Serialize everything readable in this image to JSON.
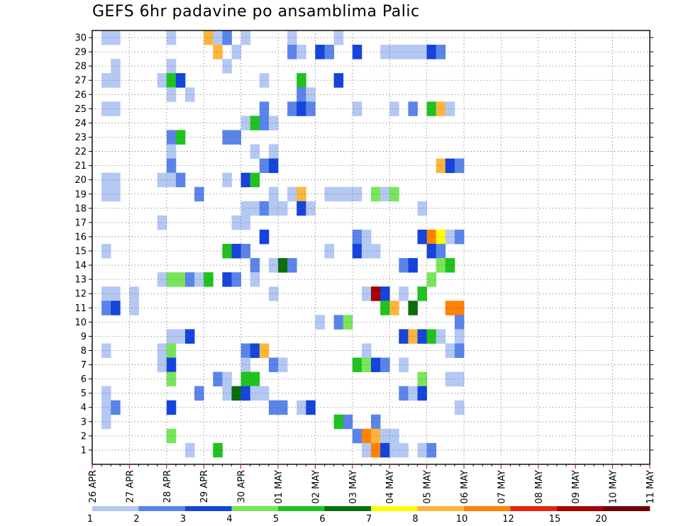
{
  "chart_data": {
    "type": "heatmap",
    "title": "GEFS 6hr padavine po ansamblima Palic",
    "x_tick_labels": [
      "26 APR",
      "27 APR",
      "28 APR",
      "29 APR",
      "30 APR",
      "01 MAY",
      "02 MAY",
      "03 MAY",
      "04 MAY",
      "05 MAY",
      "06 MAY",
      "07 MAY",
      "08 MAY",
      "09 MAY",
      "10 MAY",
      "11 MAY"
    ],
    "y_tick_labels": [
      "1",
      "2",
      "3",
      "4",
      "5",
      "6",
      "7",
      "8",
      "9",
      "10",
      "11",
      "12",
      "13",
      "14",
      "15",
      "16",
      "17",
      "18",
      "19",
      "20",
      "21",
      "22",
      "23",
      "24",
      "25",
      "26",
      "27",
      "28",
      "29",
      "30"
    ],
    "x_step_hours": 6,
    "steps_per_day": 4,
    "grid": true,
    "legend": {
      "placement": "bottom",
      "labels": [
        "1",
        "2",
        "3",
        "4",
        "5",
        "6",
        "7",
        "8",
        "10",
        "12",
        "15",
        "20"
      ],
      "colors": [
        "#b4c8f4",
        "#5a84ea",
        "#1444dc",
        "#78e65a",
        "#1ec31e",
        "#0a6e0a",
        "#ffff00",
        "#ffb43c",
        "#ff8200",
        "#e1280f",
        "#a50000",
        "#6e0000"
      ]
    },
    "cells": [
      [
        1,
        30,
        0
      ],
      [
        2,
        30,
        0
      ],
      [
        8,
        30,
        0
      ],
      [
        12,
        30,
        7
      ],
      [
        13,
        30,
        0
      ],
      [
        14,
        30,
        1
      ],
      [
        16,
        30,
        0
      ],
      [
        21,
        30,
        0
      ],
      [
        26,
        30,
        0
      ],
      [
        13,
        29,
        7
      ],
      [
        15,
        29,
        0
      ],
      [
        21,
        29,
        1
      ],
      [
        22,
        29,
        0
      ],
      [
        24,
        29,
        2
      ],
      [
        25,
        29,
        1
      ],
      [
        28,
        29,
        2
      ],
      [
        31,
        29,
        0
      ],
      [
        32,
        29,
        0
      ],
      [
        33,
        29,
        0
      ],
      [
        34,
        29,
        0
      ],
      [
        35,
        29,
        0
      ],
      [
        36,
        29,
        2
      ],
      [
        37,
        29,
        1
      ],
      [
        2,
        28,
        0
      ],
      [
        8,
        28,
        0
      ],
      [
        14,
        28,
        0
      ],
      [
        1,
        27,
        0
      ],
      [
        2,
        27,
        0
      ],
      [
        7,
        27,
        0
      ],
      [
        8,
        27,
        4
      ],
      [
        9,
        27,
        2
      ],
      [
        18,
        27,
        0
      ],
      [
        22,
        27,
        4
      ],
      [
        26,
        27,
        2
      ],
      [
        8,
        26,
        0
      ],
      [
        10,
        26,
        0
      ],
      [
        22,
        26,
        1
      ],
      [
        23,
        26,
        0
      ],
      [
        1,
        25,
        0
      ],
      [
        2,
        25,
        0
      ],
      [
        18,
        25,
        1
      ],
      [
        21,
        25,
        1
      ],
      [
        22,
        25,
        2
      ],
      [
        23,
        25,
        1
      ],
      [
        28,
        25,
        0
      ],
      [
        32,
        25,
        0
      ],
      [
        34,
        25,
        1
      ],
      [
        36,
        25,
        4
      ],
      [
        37,
        25,
        7
      ],
      [
        38,
        25,
        0
      ],
      [
        16,
        24,
        0
      ],
      [
        17,
        24,
        4
      ],
      [
        18,
        24,
        1
      ],
      [
        19,
        24,
        0
      ],
      [
        8,
        23,
        1
      ],
      [
        9,
        23,
        4
      ],
      [
        14,
        23,
        1
      ],
      [
        15,
        23,
        1
      ],
      [
        8,
        22,
        0
      ],
      [
        17,
        22,
        0
      ],
      [
        19,
        22,
        0
      ],
      [
        8,
        21,
        1
      ],
      [
        18,
        21,
        1
      ],
      [
        19,
        21,
        2
      ],
      [
        37,
        21,
        7
      ],
      [
        38,
        21,
        2
      ],
      [
        39,
        21,
        1
      ],
      [
        1,
        20,
        0
      ],
      [
        2,
        20,
        0
      ],
      [
        7,
        20,
        0
      ],
      [
        8,
        20,
        0
      ],
      [
        9,
        20,
        1
      ],
      [
        14,
        20,
        0
      ],
      [
        16,
        20,
        2
      ],
      [
        17,
        20,
        4
      ],
      [
        1,
        19,
        0
      ],
      [
        2,
        19,
        0
      ],
      [
        11,
        19,
        1
      ],
      [
        19,
        19,
        0
      ],
      [
        21,
        19,
        0
      ],
      [
        22,
        19,
        7
      ],
      [
        25,
        19,
        0
      ],
      [
        26,
        19,
        0
      ],
      [
        27,
        19,
        0
      ],
      [
        28,
        19,
        0
      ],
      [
        30,
        19,
        3
      ],
      [
        31,
        19,
        0
      ],
      [
        32,
        19,
        3
      ],
      [
        16,
        18,
        0
      ],
      [
        17,
        18,
        0
      ],
      [
        18,
        18,
        1
      ],
      [
        19,
        18,
        0
      ],
      [
        20,
        18,
        0
      ],
      [
        22,
        18,
        2
      ],
      [
        23,
        18,
        0
      ],
      [
        35,
        18,
        0
      ],
      [
        7,
        17,
        0
      ],
      [
        15,
        17,
        0
      ],
      [
        16,
        17,
        0
      ],
      [
        18,
        16,
        2
      ],
      [
        28,
        16,
        1
      ],
      [
        29,
        16,
        0
      ],
      [
        35,
        16,
        2
      ],
      [
        36,
        16,
        8
      ],
      [
        37,
        16,
        6
      ],
      [
        38,
        16,
        0
      ],
      [
        39,
        16,
        1
      ],
      [
        1,
        15,
        0
      ],
      [
        14,
        15,
        4
      ],
      [
        15,
        15,
        2
      ],
      [
        16,
        15,
        1
      ],
      [
        25,
        15,
        0
      ],
      [
        28,
        15,
        2
      ],
      [
        29,
        15,
        0
      ],
      [
        30,
        15,
        0
      ],
      [
        36,
        15,
        2
      ],
      [
        37,
        15,
        1
      ],
      [
        17,
        14,
        1
      ],
      [
        19,
        14,
        0
      ],
      [
        20,
        14,
        5
      ],
      [
        21,
        14,
        1
      ],
      [
        33,
        14,
        1
      ],
      [
        34,
        14,
        2
      ],
      [
        37,
        14,
        3
      ],
      [
        38,
        14,
        4
      ],
      [
        7,
        13,
        0
      ],
      [
        8,
        13,
        3
      ],
      [
        9,
        13,
        3
      ],
      [
        10,
        13,
        1
      ],
      [
        11,
        13,
        0
      ],
      [
        12,
        13,
        4
      ],
      [
        14,
        13,
        2
      ],
      [
        15,
        13,
        1
      ],
      [
        17,
        13,
        0
      ],
      [
        36,
        13,
        3
      ],
      [
        1,
        12,
        0
      ],
      [
        2,
        12,
        0
      ],
      [
        4,
        12,
        0
      ],
      [
        19,
        12,
        0
      ],
      [
        29,
        12,
        0
      ],
      [
        30,
        12,
        10
      ],
      [
        31,
        12,
        2
      ],
      [
        33,
        12,
        0
      ],
      [
        35,
        12,
        4
      ],
      [
        1,
        11,
        1
      ],
      [
        2,
        11,
        2
      ],
      [
        4,
        11,
        0
      ],
      [
        31,
        11,
        4
      ],
      [
        32,
        11,
        7
      ],
      [
        34,
        11,
        5
      ],
      [
        38,
        11,
        8
      ],
      [
        39,
        11,
        8
      ],
      [
        24,
        10,
        0
      ],
      [
        26,
        10,
        1
      ],
      [
        27,
        10,
        3
      ],
      [
        39,
        10,
        1
      ],
      [
        8,
        9,
        0
      ],
      [
        9,
        9,
        0
      ],
      [
        10,
        9,
        2
      ],
      [
        33,
        9,
        2
      ],
      [
        34,
        9,
        7
      ],
      [
        35,
        9,
        2
      ],
      [
        36,
        9,
        4
      ],
      [
        37,
        9,
        0
      ],
      [
        39,
        9,
        0
      ],
      [
        1,
        8,
        0
      ],
      [
        7,
        8,
        0
      ],
      [
        8,
        8,
        3
      ],
      [
        16,
        8,
        1
      ],
      [
        17,
        8,
        2
      ],
      [
        18,
        8,
        7
      ],
      [
        29,
        8,
        0
      ],
      [
        38,
        8,
        0
      ],
      [
        39,
        8,
        1
      ],
      [
        7,
        7,
        0
      ],
      [
        8,
        7,
        2
      ],
      [
        16,
        7,
        0
      ],
      [
        19,
        7,
        1
      ],
      [
        20,
        7,
        0
      ],
      [
        28,
        7,
        4
      ],
      [
        29,
        7,
        3
      ],
      [
        30,
        7,
        2
      ],
      [
        31,
        7,
        1
      ],
      [
        33,
        7,
        0
      ],
      [
        8,
        6,
        3
      ],
      [
        13,
        6,
        1
      ],
      [
        14,
        6,
        0
      ],
      [
        16,
        6,
        4
      ],
      [
        17,
        6,
        4
      ],
      [
        35,
        6,
        3
      ],
      [
        38,
        6,
        0
      ],
      [
        39,
        6,
        0
      ],
      [
        1,
        5,
        0
      ],
      [
        11,
        5,
        1
      ],
      [
        14,
        5,
        0
      ],
      [
        15,
        5,
        5
      ],
      [
        16,
        5,
        2
      ],
      [
        17,
        5,
        0
      ],
      [
        18,
        5,
        0
      ],
      [
        33,
        5,
        1
      ],
      [
        34,
        5,
        0
      ],
      [
        35,
        5,
        2
      ],
      [
        1,
        4,
        0
      ],
      [
        2,
        4,
        1
      ],
      [
        8,
        4,
        2
      ],
      [
        19,
        4,
        1
      ],
      [
        20,
        4,
        1
      ],
      [
        22,
        4,
        0
      ],
      [
        23,
        4,
        2
      ],
      [
        39,
        4,
        0
      ],
      [
        1,
        3,
        0
      ],
      [
        26,
        3,
        4
      ],
      [
        27,
        3,
        1
      ],
      [
        30,
        3,
        1
      ],
      [
        8,
        2,
        3
      ],
      [
        28,
        2,
        1
      ],
      [
        29,
        2,
        8
      ],
      [
        30,
        2,
        7
      ],
      [
        31,
        2,
        0
      ],
      [
        32,
        2,
        0
      ],
      [
        10,
        1,
        0
      ],
      [
        13,
        1,
        4
      ],
      [
        29,
        1,
        0
      ],
      [
        30,
        1,
        8
      ],
      [
        31,
        1,
        2
      ],
      [
        32,
        1,
        0
      ],
      [
        33,
        1,
        0
      ],
      [
        35,
        1,
        0
      ],
      [
        36,
        1,
        1
      ]
    ]
  }
}
